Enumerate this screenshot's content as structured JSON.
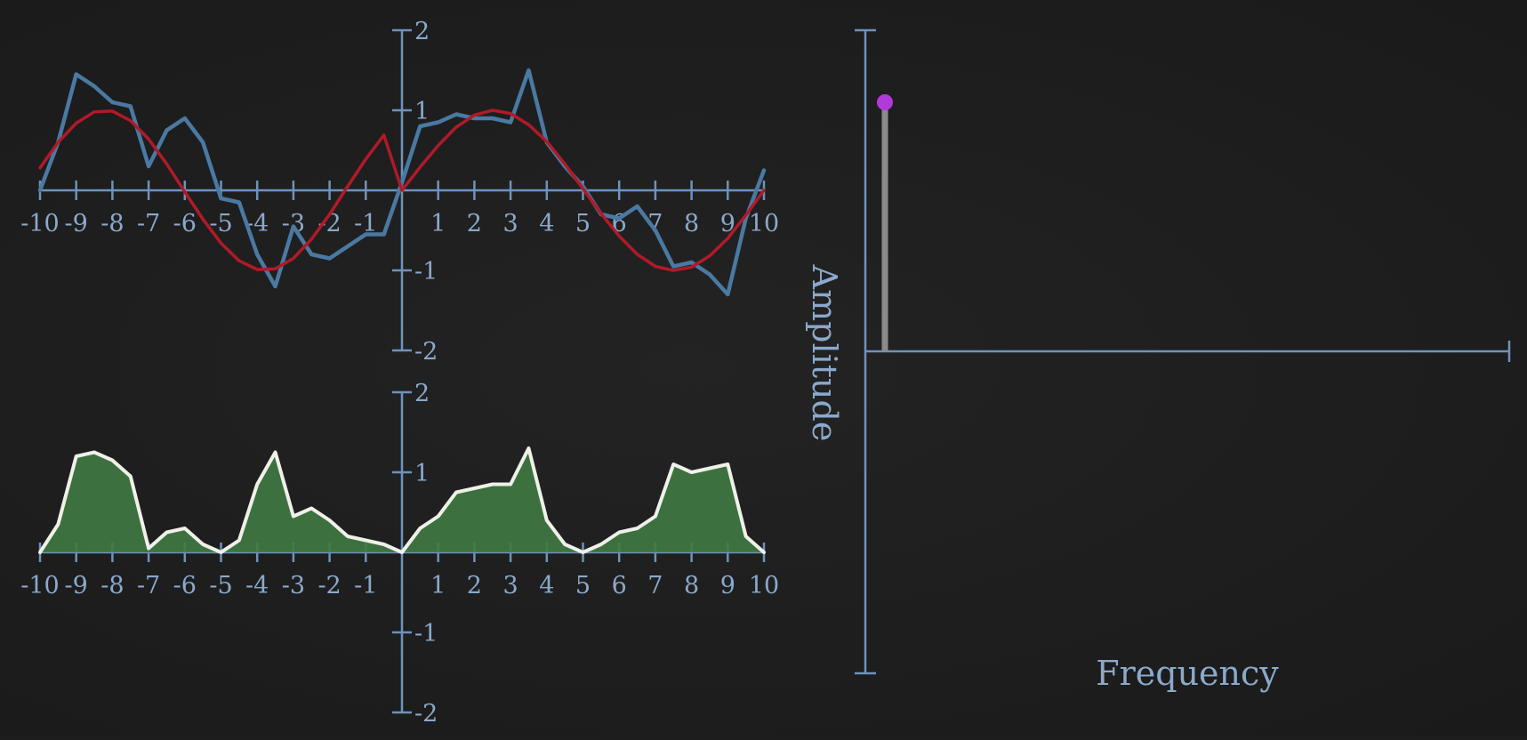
{
  "colors": {
    "background": "#1d1d1d",
    "axis": "#6e93bb",
    "signal": "#4a79a2",
    "reference_sine": "#b01a28",
    "product_fill": "#3f7a43",
    "product_line": "#f0f0ea",
    "stem": "#8a8a8a",
    "stem_head": "#b23ad8"
  },
  "chart_data": [
    {
      "type": "line",
      "xlim": [
        -10,
        10
      ],
      "ylim": [
        -2,
        2
      ],
      "x_ticks": [
        -10,
        -9,
        -8,
        -7,
        -6,
        -5,
        -4,
        -3,
        -2,
        -1,
        1,
        2,
        3,
        4,
        5,
        6,
        7,
        8,
        9,
        10
      ],
      "x_tick_labels": [
        "-10",
        "-9",
        "-8",
        "-7",
        "-6",
        "-5",
        "-4",
        "-3",
        "-2",
        "-1",
        "1",
        "2",
        "3",
        "4",
        "5",
        "6",
        "7",
        "8",
        "9",
        "10"
      ],
      "y_ticks": [
        2,
        1,
        -1,
        -2
      ],
      "y_tick_labels": [
        "2",
        "1",
        "-1",
        "-2"
      ],
      "series": [
        {
          "x": [
            -10,
            -9.5,
            -9,
            -8.5,
            -8,
            -7.5,
            -7,
            -6.5,
            -6,
            -5.5,
            -5,
            -4.5,
            -4,
            -3.5,
            -3,
            -2.5,
            -2,
            -1.5,
            -1,
            -0.5,
            0,
            0.5,
            1,
            1.5,
            2,
            2.5,
            3,
            3.5,
            4,
            4.5,
            5,
            5.5,
            6,
            6.5,
            7,
            7.5,
            8,
            8.5,
            9,
            9.5,
            10
          ],
          "values": [
            0,
            0.6,
            1.45,
            1.3,
            1.1,
            1.05,
            0.3,
            0.75,
            0.9,
            0.6,
            -0.1,
            -0.15,
            -0.8,
            -1.2,
            -0.45,
            -0.8,
            -0.85,
            -0.7,
            -0.55,
            -0.55,
            0.1,
            0.8,
            0.85,
            0.95,
            0.9,
            0.9,
            0.85,
            1.5,
            0.6,
            0.3,
            0.05,
            -0.3,
            -0.35,
            -0.2,
            -0.5,
            -0.95,
            -0.9,
            -1.05,
            -1.3,
            -0.35,
            0.25
          ]
        },
        {
          "x": [
            -10,
            -9.5,
            -9,
            -8.5,
            -8,
            -7.5,
            -7,
            -6.5,
            -6,
            -5.5,
            -5,
            -4.5,
            -4,
            -3.5,
            -3,
            -2.5,
            -2,
            -1.5,
            -1,
            -0.5,
            0,
            0.5,
            1,
            1.5,
            2,
            2.5,
            3,
            3.5,
            4,
            4.5,
            5,
            5.5,
            6,
            6.5,
            7,
            7.5,
            8,
            8.5,
            9,
            9.5,
            10
          ],
          "values": [
            0.28,
            0.6,
            0.84,
            0.98,
            0.99,
            0.87,
            0.64,
            0.33,
            -0.02,
            -0.36,
            -0.66,
            -0.88,
            -0.99,
            -0.98,
            -0.85,
            -0.61,
            -0.3,
            0.05,
            0.39,
            0.69,
            0,
            0.29,
            0.56,
            0.79,
            0.94,
            1,
            0.96,
            0.82,
            0.61,
            0.33,
            0.02,
            -0.29,
            -0.57,
            -0.8,
            -0.95,
            -1,
            -0.96,
            -0.82,
            -0.6,
            -0.31,
            0
          ]
        }
      ]
    },
    {
      "type": "area",
      "xlim": [
        -10,
        10
      ],
      "ylim": [
        -2,
        2
      ],
      "x_ticks": [
        -10,
        -9,
        -8,
        -7,
        -6,
        -5,
        -4,
        -3,
        -2,
        -1,
        1,
        2,
        3,
        4,
        5,
        6,
        7,
        8,
        9,
        10
      ],
      "x_tick_labels": [
        "-10",
        "-9",
        "-8",
        "-7",
        "-6",
        "-5",
        "-4",
        "-3",
        "-2",
        "-1",
        "1",
        "2",
        "3",
        "4",
        "5",
        "6",
        "7",
        "8",
        "9",
        "10"
      ],
      "y_ticks": [
        2,
        1,
        -1,
        -2
      ],
      "y_tick_labels": [
        "2",
        "1",
        "-1",
        "-2"
      ],
      "series": [
        {
          "x": [
            -10,
            -9.5,
            -9,
            -8.5,
            -8,
            -7.5,
            -7,
            -6.5,
            -6,
            -5.5,
            -5,
            -4.5,
            -4,
            -3.5,
            -3,
            -2.5,
            -2,
            -1.5,
            -1,
            -0.5,
            0,
            0.5,
            1,
            1.5,
            2,
            2.5,
            3,
            3.5,
            4,
            4.5,
            5,
            5.5,
            6,
            6.5,
            7,
            7.5,
            8,
            8.5,
            9,
            9.5,
            10
          ],
          "values": [
            0,
            0.35,
            1.2,
            1.25,
            1.15,
            0.95,
            0.05,
            0.25,
            0.3,
            0.1,
            0,
            0.15,
            0.85,
            1.25,
            0.45,
            0.55,
            0.4,
            0.2,
            0.15,
            0.1,
            0,
            0.3,
            0.45,
            0.75,
            0.8,
            0.85,
            0.85,
            1.3,
            0.4,
            0.1,
            0,
            0.1,
            0.25,
            0.3,
            0.45,
            1.1,
            1.0,
            1.05,
            1.1,
            0.2,
            0
          ]
        }
      ]
    },
    {
      "type": "bar",
      "xlabel": "Frequency",
      "ylabel": "Amplitude",
      "x": [
        0.3
      ],
      "values": [
        1
      ],
      "ylim": [
        -1.3,
        1.3
      ]
    }
  ]
}
